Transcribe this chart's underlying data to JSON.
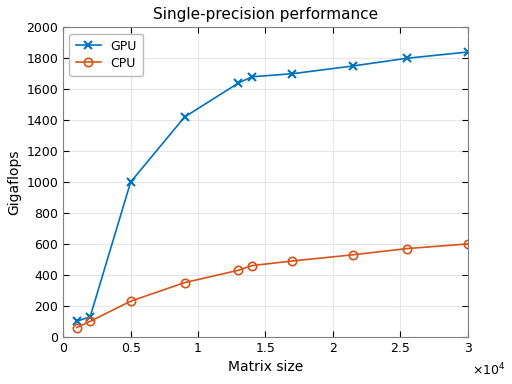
{
  "title": "Single-precision performance",
  "xlabel": "Matrix size",
  "ylabel": "Gigaflops",
  "xlim": [
    0,
    30000
  ],
  "ylim": [
    0,
    2000
  ],
  "xtick_vals": [
    0,
    5000,
    10000,
    15000,
    20000,
    25000,
    30000
  ],
  "xtick_labels": [
    "0",
    "0.5",
    "1",
    "1.5",
    "2",
    "2.5",
    "3"
  ],
  "ytick_vals": [
    0,
    200,
    400,
    600,
    800,
    1000,
    1200,
    1400,
    1600,
    1800,
    2000
  ],
  "gpu_x": [
    1000,
    2000,
    5000,
    9000,
    13000,
    14000,
    17000,
    21500,
    25500,
    30000
  ],
  "gpu_y": [
    100,
    130,
    1000,
    1420,
    1640,
    1680,
    1700,
    1750,
    1800,
    1840
  ],
  "cpu_x": [
    1000,
    2000,
    5000,
    9000,
    13000,
    14000,
    17000,
    21500,
    25500,
    30000
  ],
  "cpu_y": [
    60,
    100,
    230,
    350,
    430,
    460,
    490,
    530,
    570,
    600
  ],
  "gpu_color": "#0072BD",
  "cpu_color": "#D95319",
  "bg_color": "#FFFFFF",
  "grid_color": "#E6E6E6",
  "legend_gpu": "GPU",
  "legend_cpu": "CPU",
  "title_fontsize": 11,
  "label_fontsize": 10,
  "tick_fontsize": 9,
  "legend_fontsize": 9
}
